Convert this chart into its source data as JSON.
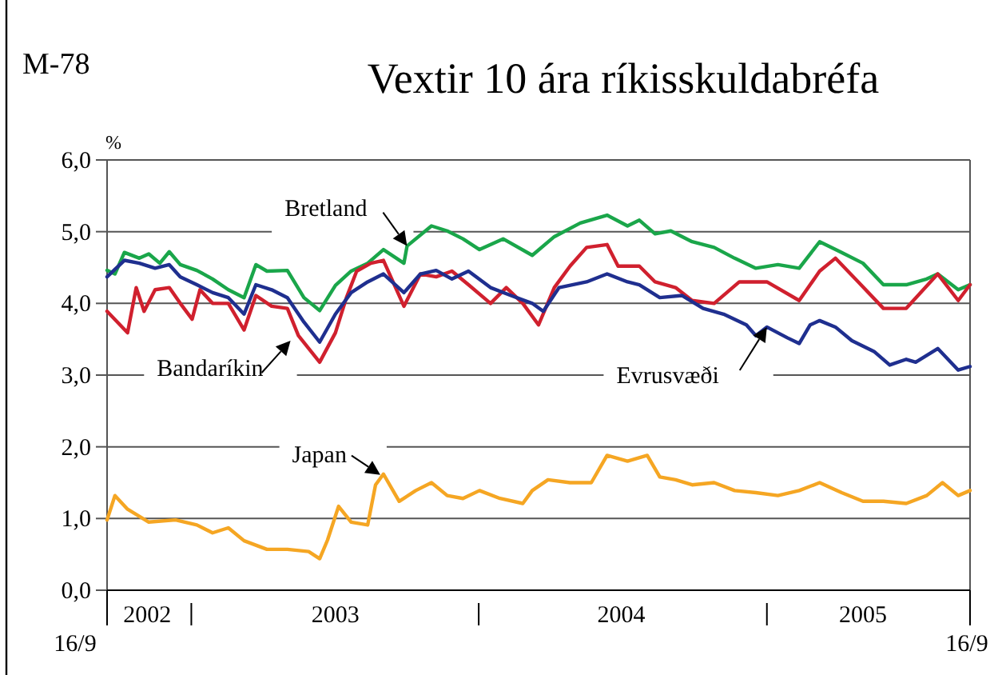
{
  "chart_data": {
    "type": "line",
    "title": "Vextir 10 ára ríkisskuldabréfa",
    "ylabel": "%",
    "annotations": [
      "M-78",
      {
        "text": "Bretland",
        "x": "2003-10-02",
        "y": 4.8
      },
      {
        "text": "Bandaríkin",
        "x": "2003-05-07",
        "y": 3.48
      },
      {
        "text": "Evrusvæði",
        "x": "2005-01-01",
        "y": 3.67
      },
      {
        "text": "Japan",
        "x": "2003-08-29",
        "y": 1.61
      },
      "16/9",
      "16/9"
    ],
    "xlim": [
      "2002-09-16",
      "2005-09-16"
    ],
    "xticks": [
      {
        "value": "2002-09-16",
        "label": null
      },
      {
        "value": "2002-11-06",
        "label": "2002"
      },
      {
        "value": "2003-01-01",
        "label": null
      },
      {
        "value": "2003-07-03",
        "label": "2003"
      },
      {
        "value": "2004-01-01",
        "label": null
      },
      {
        "value": "2004-06-30",
        "label": "2004"
      },
      {
        "value": "2005-01-01",
        "label": null
      },
      {
        "value": "2005-05-03",
        "label": "2005"
      },
      {
        "value": "2005-09-16",
        "label": null
      }
    ],
    "ylim": [
      0,
      6
    ],
    "yticks": [
      {
        "value": 0,
        "label": "0,0"
      },
      {
        "value": 1,
        "label": "1,0"
      },
      {
        "value": 2,
        "label": "2,0"
      },
      {
        "value": 3,
        "label": "3,0"
      },
      {
        "value": 4,
        "label": "4,0"
      },
      {
        "value": 5,
        "label": "5,0"
      },
      {
        "value": 6,
        "label": "6,0"
      }
    ],
    "grid": "y",
    "line_style": "solid",
    "marker": "none",
    "series": [
      {
        "color": "#1aa64a",
        "x": [
          "2002-09-16",
          "2002-09-26",
          "2002-10-08",
          "2002-10-27",
          "2002-11-08",
          "2002-11-22",
          "2002-12-04",
          "2002-12-18",
          "2003-01-08",
          "2003-01-28",
          "2003-02-17",
          "2003-03-09",
          "2003-03-24",
          "2003-04-07",
          "2003-05-03",
          "2003-05-24",
          "2003-06-13",
          "2003-07-03",
          "2003-07-23",
          "2003-08-13",
          "2003-09-02",
          "2003-09-28",
          "2003-10-02",
          "2003-11-02",
          "2003-11-22",
          "2003-12-12",
          "2004-01-02",
          "2004-02-01",
          "2004-03-09",
          "2004-04-06",
          "2004-05-09",
          "2004-06-12",
          "2004-07-08",
          "2004-07-23",
          "2004-08-12",
          "2004-09-01",
          "2004-09-28",
          "2004-10-26",
          "2004-11-21",
          "2004-12-18",
          "2005-01-15",
          "2005-02-11",
          "2005-03-09",
          "2005-04-06",
          "2005-05-03",
          "2005-05-29",
          "2005-06-27",
          "2005-07-23",
          "2005-08-06",
          "2005-09-01",
          "2005-09-16"
        ],
        "values": [
          4.46,
          4.41,
          4.71,
          4.63,
          4.69,
          4.56,
          4.72,
          4.54,
          4.46,
          4.34,
          4.19,
          4.08,
          4.54,
          4.45,
          4.46,
          4.08,
          3.9,
          4.25,
          4.45,
          4.56,
          4.75,
          4.56,
          4.8,
          5.08,
          5.01,
          4.9,
          4.75,
          4.9,
          4.67,
          4.93,
          5.12,
          5.23,
          5.08,
          5.16,
          4.97,
          5.01,
          4.86,
          4.78,
          4.63,
          4.49,
          4.54,
          4.49,
          4.86,
          4.71,
          4.56,
          4.26,
          4.26,
          4.34,
          4.41,
          4.19,
          4.26
        ]
      },
      {
        "color": "#d0202e",
        "x": [
          "2002-09-16",
          "2002-10-12",
          "2002-10-23",
          "2002-11-02",
          "2002-11-16",
          "2002-12-04",
          "2002-12-18",
          "2003-01-02",
          "2003-01-12",
          "2003-01-28",
          "2003-02-17",
          "2003-03-09",
          "2003-03-24",
          "2003-04-13",
          "2003-05-03",
          "2003-05-17",
          "2003-06-13",
          "2003-07-03",
          "2003-07-17",
          "2003-07-30",
          "2003-08-17",
          "2003-09-02",
          "2003-09-28",
          "2003-10-19",
          "2003-11-08",
          "2003-11-28",
          "2003-12-19",
          "2004-01-16",
          "2004-02-05",
          "2004-02-26",
          "2004-03-17",
          "2004-04-06",
          "2004-04-26",
          "2004-05-17",
          "2004-06-12",
          "2004-06-26",
          "2004-07-23",
          "2004-08-12",
          "2004-09-07",
          "2004-09-28",
          "2004-10-26",
          "2004-11-27",
          "2005-01-01",
          "2005-02-11",
          "2005-03-09",
          "2005-03-29",
          "2005-04-27",
          "2005-05-29",
          "2005-06-27",
          "2005-08-06",
          "2005-09-01",
          "2005-09-16"
        ],
        "values": [
          3.89,
          3.59,
          4.22,
          3.89,
          4.19,
          4.22,
          4.0,
          3.78,
          4.19,
          4.0,
          4.0,
          3.63,
          4.11,
          3.96,
          3.93,
          3.55,
          3.18,
          3.59,
          4.08,
          4.45,
          4.56,
          4.6,
          3.96,
          4.41,
          4.37,
          4.45,
          4.26,
          4.0,
          4.22,
          4.0,
          3.7,
          4.22,
          4.52,
          4.78,
          4.82,
          4.52,
          4.52,
          4.3,
          4.22,
          4.04,
          4.0,
          4.3,
          4.3,
          4.04,
          4.45,
          4.63,
          4.3,
          3.93,
          3.93,
          4.41,
          4.04,
          4.26
        ]
      },
      {
        "color": "#1f2f8f",
        "x": [
          "2002-09-16",
          "2002-10-08",
          "2002-10-27",
          "2002-11-16",
          "2002-12-04",
          "2002-12-18",
          "2003-01-08",
          "2003-01-28",
          "2003-02-17",
          "2003-03-09",
          "2003-03-24",
          "2003-04-13",
          "2003-05-03",
          "2003-05-24",
          "2003-06-13",
          "2003-07-03",
          "2003-07-23",
          "2003-08-13",
          "2003-09-02",
          "2003-09-28",
          "2003-10-19",
          "2003-11-08",
          "2003-11-28",
          "2003-12-19",
          "2004-01-16",
          "2004-02-11",
          "2004-03-09",
          "2004-03-23",
          "2004-04-12",
          "2004-05-17",
          "2004-06-12",
          "2004-07-08",
          "2004-07-23",
          "2004-08-18",
          "2004-09-15",
          "2004-10-12",
          "2004-11-07",
          "2004-12-06",
          "2004-12-18",
          "2005-01-01",
          "2005-01-27",
          "2005-02-11",
          "2005-02-25",
          "2005-03-09",
          "2005-03-29",
          "2005-04-19",
          "2005-05-17",
          "2005-06-06",
          "2005-06-27",
          "2005-07-09",
          "2005-08-06",
          "2005-09-01",
          "2005-09-16"
        ],
        "values": [
          4.37,
          4.6,
          4.56,
          4.49,
          4.54,
          4.37,
          4.26,
          4.15,
          4.08,
          3.85,
          4.26,
          4.19,
          4.08,
          3.74,
          3.46,
          3.85,
          4.15,
          4.3,
          4.41,
          4.15,
          4.41,
          4.46,
          4.34,
          4.45,
          4.22,
          4.11,
          4.0,
          3.89,
          4.22,
          4.3,
          4.41,
          4.3,
          4.26,
          4.08,
          4.11,
          3.93,
          3.85,
          3.7,
          3.55,
          3.67,
          3.52,
          3.44,
          3.7,
          3.76,
          3.67,
          3.48,
          3.33,
          3.14,
          3.22,
          3.18,
          3.37,
          3.07,
          3.12
        ]
      },
      {
        "color": "#f5a623",
        "x": [
          "2002-09-16",
          "2002-09-26",
          "2002-10-12",
          "2002-11-08",
          "2002-12-12",
          "2003-01-08",
          "2003-01-28",
          "2003-02-17",
          "2003-03-09",
          "2003-04-07",
          "2003-05-03",
          "2003-05-30",
          "2003-06-13",
          "2003-06-23",
          "2003-07-07",
          "2003-07-23",
          "2003-08-13",
          "2003-08-23",
          "2003-09-02",
          "2003-09-22",
          "2003-10-13",
          "2003-11-02",
          "2003-11-22",
          "2003-12-12",
          "2004-01-02",
          "2004-01-28",
          "2004-02-26",
          "2004-03-09",
          "2004-03-29",
          "2004-04-26",
          "2004-05-23",
          "2004-06-12",
          "2004-07-08",
          "2004-08-02",
          "2004-08-18",
          "2004-09-07",
          "2004-09-28",
          "2004-10-26",
          "2004-11-21",
          "2004-12-18",
          "2005-01-15",
          "2005-02-11",
          "2005-03-09",
          "2005-04-06",
          "2005-05-03",
          "2005-05-29",
          "2005-06-27",
          "2005-07-23",
          "2005-08-12",
          "2005-09-01",
          "2005-09-16"
        ],
        "values": [
          0.98,
          1.32,
          1.13,
          0.95,
          0.98,
          0.91,
          0.8,
          0.87,
          0.69,
          0.57,
          0.57,
          0.54,
          0.44,
          0.7,
          1.17,
          0.95,
          0.91,
          1.47,
          1.62,
          1.24,
          1.39,
          1.5,
          1.32,
          1.28,
          1.39,
          1.28,
          1.21,
          1.39,
          1.54,
          1.5,
          1.5,
          1.88,
          1.8,
          1.88,
          1.58,
          1.54,
          1.47,
          1.5,
          1.39,
          1.36,
          1.32,
          1.39,
          1.5,
          1.36,
          1.24,
          1.24,
          1.21,
          1.32,
          1.5,
          1.32,
          1.39
        ]
      }
    ]
  }
}
